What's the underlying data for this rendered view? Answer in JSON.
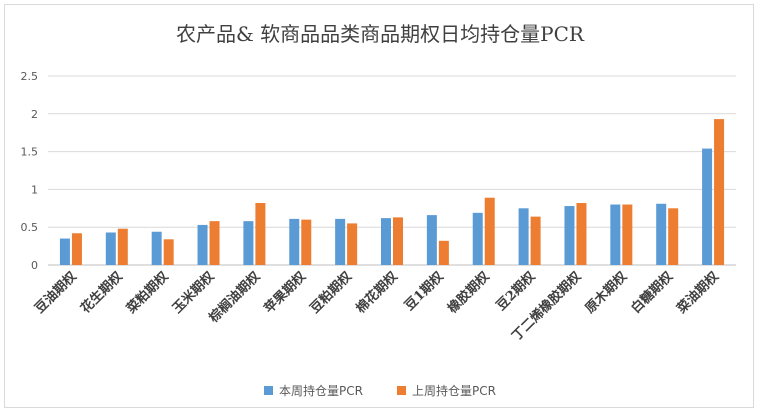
{
  "chart_data": {
    "type": "bar",
    "title": "农产品& 软商品品类商品期权日均持仓量PCR",
    "categories": [
      "豆油期权",
      "花生期权",
      "菜粕期权",
      "玉米期权",
      "棕榈油期权",
      "苹果期权",
      "豆粕期权",
      "棉花期权",
      "豆1期权",
      "橡胶期权",
      "豆2期权",
      "丁二烯橡胶期权",
      "原木期权",
      "白糖期权",
      "菜油期权"
    ],
    "series": [
      {
        "name": "本周持仓量PCR",
        "color": "#5b9bd5",
        "values": [
          0.35,
          0.43,
          0.44,
          0.53,
          0.58,
          0.61,
          0.61,
          0.62,
          0.66,
          0.69,
          0.75,
          0.78,
          0.8,
          0.81,
          1.54
        ]
      },
      {
        "name": "上周持仓量PCR",
        "color": "#ed7d31",
        "values": [
          0.42,
          0.48,
          0.34,
          0.58,
          0.82,
          0.6,
          0.55,
          0.63,
          0.32,
          0.89,
          0.64,
          0.82,
          0.8,
          0.75,
          1.93
        ]
      }
    ],
    "y_ticks": [
      "0",
      "0.5",
      "1",
      "1.5",
      "2",
      "2.5"
    ],
    "ylim": [
      0,
      2.5
    ],
    "grid": true,
    "legend_position": "bottom"
  }
}
